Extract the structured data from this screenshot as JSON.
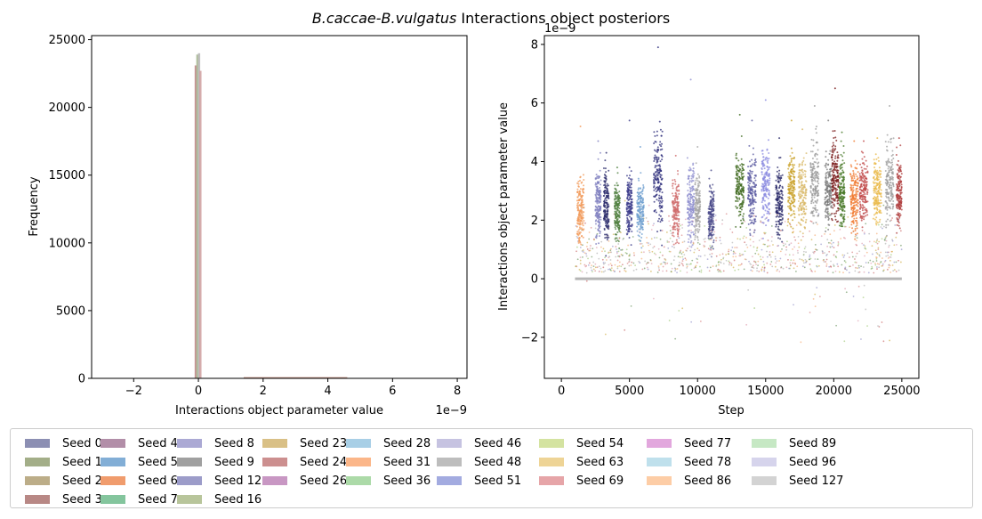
{
  "figure": {
    "title_italic": "B.caccae-B.vulgatus",
    "title_rest": " Interactions object posteriors"
  },
  "chart_data": [
    {
      "type": "bar",
      "subtype": "histogram",
      "xlabel": "Interactions object parameter value",
      "ylabel": "Frequency",
      "x_offset_label": "1e−9",
      "xlim": [
        -3.3,
        8.3
      ],
      "ylim": [
        0,
        25300
      ],
      "xticks": [
        -2,
        0,
        2,
        4,
        6,
        8
      ],
      "xtick_labels": [
        "−2",
        "0",
        "2",
        "4",
        "6",
        "8"
      ],
      "yticks": [
        0,
        5000,
        10000,
        15000,
        20000,
        25000
      ],
      "ytick_labels": [
        "0",
        "5000",
        "10000",
        "15000",
        "20000",
        "25000"
      ],
      "grid": false,
      "peak_bars": [
        {
          "x": -0.08,
          "height": 23100,
          "color": "#c08a8a"
        },
        {
          "x": -0.03,
          "height": 23900,
          "color": "#a9b992"
        },
        {
          "x": 0.02,
          "height": 24000,
          "color": "#b9b9b9"
        },
        {
          "x": 0.06,
          "height": 22700,
          "color": "#d1a4a4"
        }
      ],
      "tail_range": [
        1.4,
        4.6
      ],
      "tail_height": 90
    },
    {
      "type": "scatter",
      "xlabel": "Step",
      "ylabel": "Interactions object parameter value",
      "y_offset_label": "1e−9",
      "xlim": [
        -1250,
        26250
      ],
      "ylim": [
        -3.4,
        8.3
      ],
      "xticks": [
        0,
        5000,
        10000,
        15000,
        20000,
        25000
      ],
      "xtick_labels": [
        "0",
        "5000",
        "10000",
        "15000",
        "20000",
        "25000"
      ],
      "yticks": [
        -2,
        0,
        2,
        4,
        6,
        8
      ],
      "ytick_labels": [
        "−2",
        "0",
        "2",
        "4",
        "6",
        "8"
      ],
      "grid": false,
      "zero_line": {
        "x_start": 1000,
        "x_end": 25000,
        "y": 0,
        "color": "#b5b5b5"
      },
      "clusters": [
        {
          "center": 1400,
          "width": 250,
          "mean": 2.4,
          "spread": 0.9,
          "max": 5.2,
          "color": "#f29a5a"
        },
        {
          "center": 2700,
          "width": 200,
          "mean": 2.5,
          "spread": 1.0,
          "max": 4.7,
          "color": "#7f7fbf"
        },
        {
          "center": 3300,
          "width": 180,
          "mean": 2.5,
          "spread": 0.9,
          "max": 4.3,
          "color": "#2d2d6e"
        },
        {
          "center": 4100,
          "width": 200,
          "mean": 2.3,
          "spread": 0.8,
          "max": 3.8,
          "color": "#4f7f3f"
        },
        {
          "center": 5000,
          "width": 200,
          "mean": 2.5,
          "spread": 0.9,
          "max": 5.4,
          "color": "#3a3a8a"
        },
        {
          "center": 5800,
          "width": 250,
          "mean": 2.4,
          "spread": 0.8,
          "max": 4.5,
          "color": "#6f9fcf"
        },
        {
          "center": 7100,
          "width": 320,
          "mean": 3.5,
          "spread": 1.3,
          "max": 7.9,
          "color": "#2b2b7a"
        },
        {
          "center": 8400,
          "width": 250,
          "mean": 2.3,
          "spread": 0.8,
          "max": 4.2,
          "color": "#cf6b6b"
        },
        {
          "center": 9500,
          "width": 250,
          "mean": 2.6,
          "spread": 1.0,
          "max": 6.8,
          "color": "#8f8fcf"
        },
        {
          "center": 10000,
          "width": 200,
          "mean": 2.5,
          "spread": 0.9,
          "max": 4.5,
          "color": "#a5a5a5"
        },
        {
          "center": 11000,
          "width": 200,
          "mean": 2.2,
          "spread": 0.8,
          "max": 3.7,
          "color": "#4a4a8a"
        },
        {
          "center": 13100,
          "width": 300,
          "mean": 3.2,
          "spread": 1.0,
          "max": 5.6,
          "color": "#3f6a1f"
        },
        {
          "center": 14000,
          "width": 300,
          "mean": 3.0,
          "spread": 1.0,
          "max": 5.4,
          "color": "#5a5aa0"
        },
        {
          "center": 15000,
          "width": 300,
          "mean": 3.1,
          "spread": 1.1,
          "max": 6.1,
          "color": "#8a8ae0"
        },
        {
          "center": 16000,
          "width": 250,
          "mean": 2.6,
          "spread": 0.9,
          "max": 4.8,
          "color": "#2a2a6a"
        },
        {
          "center": 16900,
          "width": 250,
          "mean": 3.1,
          "spread": 1.0,
          "max": 5.4,
          "color": "#c9a22a"
        },
        {
          "center": 17700,
          "width": 300,
          "mean": 2.9,
          "spread": 1.0,
          "max": 5.1,
          "color": "#d9b96a"
        },
        {
          "center": 18600,
          "width": 300,
          "mean": 3.3,
          "spread": 1.1,
          "max": 5.9,
          "color": "#9a9a9a"
        },
        {
          "center": 19600,
          "width": 250,
          "mean": 3.0,
          "spread": 1.0,
          "max": 5.4,
          "color": "#7a7a7a"
        },
        {
          "center": 20100,
          "width": 250,
          "mean": 3.4,
          "spread": 1.1,
          "max": 6.5,
          "color": "#7a1a1a"
        },
        {
          "center": 20600,
          "width": 200,
          "mean": 2.9,
          "spread": 1.0,
          "max": 5.0,
          "color": "#4a7a2a"
        },
        {
          "center": 21500,
          "width": 300,
          "mean": 2.8,
          "spread": 0.9,
          "max": 4.7,
          "color": "#f07a30"
        },
        {
          "center": 22200,
          "width": 300,
          "mean": 3.0,
          "spread": 0.9,
          "max": 4.7,
          "color": "#c04a4a"
        },
        {
          "center": 23200,
          "width": 300,
          "mean": 3.0,
          "spread": 0.9,
          "max": 4.8,
          "color": "#e9b94a"
        },
        {
          "center": 24100,
          "width": 300,
          "mean": 3.3,
          "spread": 1.1,
          "max": 5.9,
          "color": "#a0a0a0"
        },
        {
          "center": 24800,
          "width": 200,
          "mean": 2.9,
          "spread": 0.9,
          "max": 4.8,
          "color": "#b04040"
        }
      ],
      "background_colors": [
        "#f29a5a",
        "#7f7fbf",
        "#4f7f3f",
        "#cf6b6b",
        "#a5a5a5",
        "#c9a22a",
        "#9a9a9a",
        "#c04a4a",
        "#8fbf5f",
        "#d98aa0"
      ]
    }
  ],
  "legend": {
    "columns": [
      [
        {
          "label": "Seed 0",
          "color": "#8c8fb3"
        },
        {
          "label": "Seed 1",
          "color": "#a3ae88"
        },
        {
          "label": "Seed 2",
          "color": "#bcad88"
        },
        {
          "label": "Seed 3",
          "color": "#b88885"
        }
      ],
      [
        {
          "label": "Seed 4",
          "color": "#b28ea8"
        },
        {
          "label": "Seed 5",
          "color": "#82aed6"
        },
        {
          "label": "Seed 6",
          "color": "#f09c6d"
        },
        {
          "label": "Seed 7",
          "color": "#84c59d"
        }
      ],
      [
        {
          "label": "Seed 8",
          "color": "#aba9d4"
        },
        {
          "label": "Seed 9",
          "color": "#a0a0a0"
        },
        {
          "label": "Seed 12",
          "color": "#9c9cc9"
        },
        {
          "label": "Seed 16",
          "color": "#b8c59b"
        }
      ],
      [
        {
          "label": "Seed 23",
          "color": "#d9c086"
        },
        {
          "label": "Seed 24",
          "color": "#cc8f8f"
        },
        {
          "label": "Seed 26",
          "color": "#c897c3"
        }
      ],
      [
        {
          "label": "Seed 28",
          "color": "#a8cfe6"
        },
        {
          "label": "Seed 31",
          "color": "#fbb689"
        },
        {
          "label": "Seed 36",
          "color": "#acdaa8"
        }
      ],
      [
        {
          "label": "Seed 46",
          "color": "#c6c3e1"
        },
        {
          "label": "Seed 48",
          "color": "#bdbdbd"
        },
        {
          "label": "Seed 51",
          "color": "#a3abe0"
        }
      ],
      [
        {
          "label": "Seed 54",
          "color": "#d4e3a1"
        },
        {
          "label": "Seed 63",
          "color": "#eed496"
        },
        {
          "label": "Seed 69",
          "color": "#e6a5a8"
        }
      ],
      [
        {
          "label": "Seed 77",
          "color": "#e2a7dd"
        },
        {
          "label": "Seed 78",
          "color": "#bfe0ec"
        },
        {
          "label": "Seed 86",
          "color": "#fdcda6"
        }
      ],
      [
        {
          "label": "Seed 89",
          "color": "#c6e8c4"
        },
        {
          "label": "Seed 96",
          "color": "#d6d4ec"
        },
        {
          "label": "Seed 127",
          "color": "#d3d3d3"
        }
      ]
    ]
  }
}
